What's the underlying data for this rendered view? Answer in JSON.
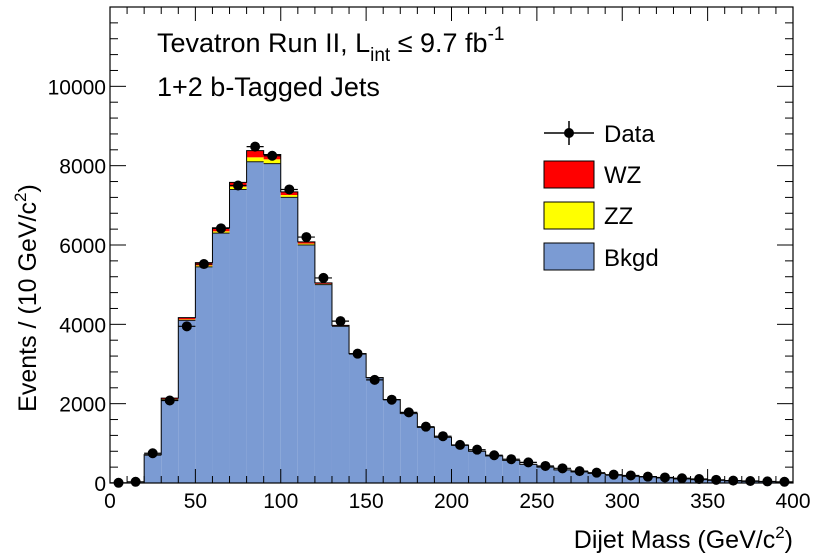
{
  "chart_data": {
    "type": "histogram",
    "title": "",
    "xlabel": "Dijet Mass (GeV/c²)",
    "ylabel": "Events / (10 GeV/c²)",
    "xlim": [
      0,
      400
    ],
    "ylim": [
      0,
      12000
    ],
    "bin_width": 10,
    "x_ticks": [
      0,
      50,
      100,
      150,
      200,
      250,
      300,
      350,
      400
    ],
    "y_ticks": [
      0,
      2000,
      4000,
      6000,
      8000,
      10000
    ],
    "x_tick_labels": [
      "0",
      "50",
      "100",
      "150",
      "200",
      "250",
      "300",
      "350",
      "400"
    ],
    "y_tick_labels": [
      "0",
      "2000",
      "4000",
      "6000",
      "8000",
      "10000"
    ],
    "bin_centers": [
      5,
      15,
      25,
      35,
      45,
      55,
      65,
      75,
      85,
      95,
      105,
      115,
      125,
      135,
      145,
      155,
      165,
      175,
      185,
      195,
      205,
      215,
      225,
      235,
      245,
      255,
      265,
      275,
      285,
      295,
      305,
      315,
      325,
      335,
      345,
      355,
      365,
      375,
      385,
      395
    ],
    "series": [
      {
        "name": "Bkgd",
        "kind": "stack",
        "color": "#7B9BD3",
        "values": [
          0,
          0,
          700,
          2100,
          4100,
          5450,
          6300,
          7400,
          8100,
          8050,
          7200,
          6000,
          5000,
          3950,
          3250,
          2650,
          2100,
          1750,
          1400,
          1150,
          950,
          800,
          680,
          570,
          470,
          400,
          330,
          280,
          240,
          200,
          170,
          150,
          125,
          100,
          85,
          70,
          55,
          45,
          35,
          25
        ]
      },
      {
        "name": "ZZ",
        "kind": "stack",
        "color": "#FFFF00",
        "values": [
          0,
          0,
          5,
          15,
          25,
          35,
          45,
          70,
          110,
          110,
          60,
          35,
          20,
          10,
          5,
          5,
          3,
          2,
          2,
          1,
          1,
          0,
          0,
          0,
          0,
          0,
          0,
          0,
          0,
          0,
          0,
          0,
          0,
          0,
          0,
          0,
          0,
          0,
          0,
          0
        ]
      },
      {
        "name": "WZ",
        "kind": "stack",
        "color": "#FF0000",
        "values": [
          0,
          0,
          10,
          25,
          45,
          70,
          90,
          110,
          170,
          120,
          80,
          45,
          25,
          15,
          8,
          5,
          3,
          2,
          2,
          1,
          1,
          0,
          0,
          0,
          0,
          0,
          0,
          0,
          0,
          0,
          0,
          0,
          0,
          0,
          0,
          0,
          0,
          0,
          0,
          0
        ]
      },
      {
        "name": "Data",
        "kind": "points",
        "color": "#000000",
        "values": [
          5,
          30,
          750,
          2080,
          3950,
          5520,
          6420,
          7500,
          8480,
          8250,
          7400,
          6200,
          5170,
          4080,
          3260,
          2600,
          2100,
          1780,
          1420,
          1180,
          960,
          840,
          700,
          600,
          520,
          430,
          370,
          300,
          260,
          210,
          190,
          160,
          140,
          120,
          100,
          80,
          60,
          50,
          40,
          30
        ]
      }
    ],
    "legend": {
      "placement": "top-right",
      "entries": [
        {
          "label": "Data",
          "style": "marker",
          "color": "#000000"
        },
        {
          "label": "WZ",
          "style": "box",
          "color": "#FF0000"
        },
        {
          "label": "ZZ",
          "style": "box",
          "color": "#FFFF00"
        },
        {
          "label": "Bkgd",
          "style": "box",
          "color": "#7B9BD3"
        }
      ]
    },
    "annotations": {
      "line1_main": "Tevatron Run II, L",
      "line1_sub": "int",
      "line1_rel": " ≤ 9.7 fb",
      "line1_sup": "-1",
      "line2": "1+2 b-Tagged Jets"
    },
    "grid": false
  }
}
